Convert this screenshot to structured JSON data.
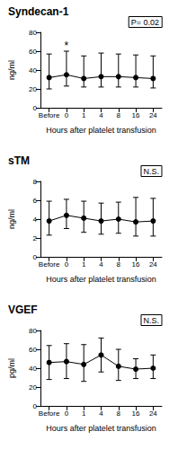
{
  "chart_data": [
    {
      "type": "line",
      "title": "Syndecan-1",
      "x_label": "Hours after platelet transfusion",
      "y_label": "ng/ml",
      "categories": [
        "Before",
        "0",
        "1",
        "4",
        "8",
        "16",
        "24"
      ],
      "values": [
        32,
        35,
        31,
        33,
        33,
        32,
        31
      ],
      "lower": [
        20,
        23,
        22,
        22,
        22,
        22,
        21
      ],
      "upper": [
        57,
        60,
        55,
        58,
        57,
        56,
        55
      ],
      "color": "#000000",
      "marker": "circle",
      "ylim": [
        0,
        80
      ],
      "yticks": [
        0,
        20,
        40,
        60,
        80
      ],
      "grid": false,
      "annotations": [
        {
          "text": "P= 0.02"
        }
      ],
      "point_annotations": [
        {
          "category": "0",
          "text": "*"
        }
      ]
    },
    {
      "type": "line",
      "title": "sTM",
      "x_label": "Hours after platelet transfusion",
      "y_label": "ng/ml",
      "categories": [
        "Before",
        "0",
        "1",
        "4",
        "8",
        "16",
        "24"
      ],
      "values": [
        3.8,
        4.4,
        4.1,
        3.8,
        4.0,
        3.7,
        3.8
      ],
      "lower": [
        2.3,
        3.0,
        2.6,
        2.4,
        2.5,
        2.2,
        2.2
      ],
      "upper": [
        5.9,
        6.1,
        5.9,
        5.7,
        5.8,
        6.3,
        6.2
      ],
      "color": "#000000",
      "marker": "circle",
      "ylim": [
        0,
        8
      ],
      "yticks": [
        0,
        2,
        4,
        6,
        8
      ],
      "grid": false,
      "annotations": [
        {
          "text": "N.S."
        }
      ]
    },
    {
      "type": "line",
      "title": "VGEF",
      "x_label": "Hours after platelet transfusion",
      "y_label": "pg/ml",
      "categories": [
        "Before",
        "0",
        "1",
        "4",
        "8",
        "16",
        "24"
      ],
      "values": [
        46,
        47,
        44,
        54,
        42,
        39,
        40
      ],
      "lower": [
        28,
        29,
        26,
        36,
        27,
        29,
        29
      ],
      "upper": [
        64,
        66,
        65,
        72,
        60,
        50,
        54
      ],
      "color": "#000000",
      "marker": "circle",
      "ylim": [
        0,
        80
      ],
      "yticks": [
        0,
        20,
        40,
        60,
        80
      ],
      "grid": false,
      "annotations": [
        {
          "text": "N.S."
        }
      ]
    }
  ]
}
